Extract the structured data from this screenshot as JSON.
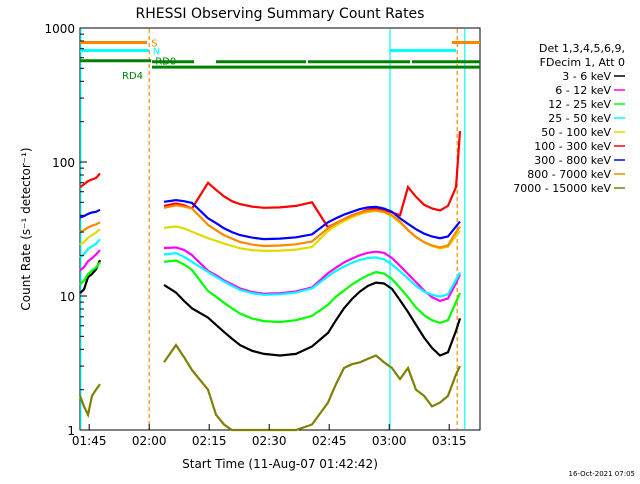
{
  "chart_data": {
    "type": "line",
    "title": "RHESSI Observing Summary Count Rates",
    "xlabel": "Start Time (11-Aug-07 01:42:42)",
    "ylabel": "Count Rate (s⁻¹ detector⁻¹)",
    "yscale": "log",
    "ylim": [
      1,
      1000
    ],
    "xlim_minutes": [
      0,
      100
    ],
    "x_ticks": [
      {
        "label": "01:45",
        "minute": 2.3
      },
      {
        "label": "02:00",
        "minute": 17.3
      },
      {
        "label": "02:15",
        "minute": 32.3
      },
      {
        "label": "02:30",
        "minute": 47.3
      },
      {
        "label": "02:45",
        "minute": 62.3
      },
      {
        "label": "03:00",
        "minute": 77.3
      },
      {
        "label": "03:15",
        "minute": 92.3
      }
    ],
    "y_ticks": [
      {
        "label": "1",
        "value": 1
      },
      {
        "label": "10",
        "value": 10
      },
      {
        "label": "100",
        "value": 100
      },
      {
        "label": "1000",
        "value": 1000
      }
    ],
    "legend": {
      "position": "right",
      "header": [
        "Det 1,3,4,5,6,9,",
        "FDecim 1, Att 0"
      ]
    },
    "series": [
      {
        "name": "3 - 6 keV",
        "color": "#000000",
        "x": [
          0,
          1,
          2,
          3,
          4,
          5,
          19,
          21,
          24,
          26,
          28,
          32,
          34,
          36,
          38,
          40,
          43,
          46,
          50,
          54,
          58,
          62,
          64,
          66,
          68,
          70,
          72,
          74,
          76,
          78,
          80,
          82,
          84,
          86,
          88,
          90,
          92,
          94,
          95
        ],
        "y": [
          10.5,
          11.2,
          13.8,
          14.6,
          15.8,
          18.5,
          null,
          12.1,
          10.6,
          9.2,
          8.1,
          6.9,
          6.1,
          5.4,
          4.8,
          4.3,
          3.9,
          3.7,
          3.6,
          3.7,
          4.2,
          5.3,
          6.6,
          8.1,
          9.5,
          10.8,
          11.9,
          12.6,
          12.4,
          11.3,
          9.3,
          7.6,
          6.1,
          4.9,
          4.1,
          3.6,
          3.8,
          5.5,
          6.8
        ]
      },
      {
        "name": "6 - 12 keV",
        "color": "#ff00ff",
        "x": [
          0,
          1,
          2,
          3,
          4,
          5,
          19,
          21,
          24,
          26,
          28,
          32,
          34,
          36,
          38,
          40,
          43,
          46,
          50,
          54,
          58,
          62,
          64,
          66,
          68,
          70,
          72,
          74,
          76,
          78,
          80,
          82,
          84,
          86,
          88,
          90,
          92,
          94,
          95
        ],
        "y": [
          15.5,
          16.4,
          18.2,
          19.1,
          20.4,
          22.0,
          null,
          22.8,
          23.0,
          22.1,
          20.2,
          15.4,
          14.3,
          13.1,
          12.2,
          11.4,
          10.7,
          10.4,
          10.5,
          10.8,
          11.6,
          14.8,
          16.3,
          17.8,
          19.0,
          20.2,
          21.0,
          21.4,
          21.0,
          19.2,
          16.8,
          14.6,
          12.7,
          11.0,
          9.8,
          9.2,
          9.6,
          12.5,
          14.5
        ]
      },
      {
        "name": "12 - 25 keV",
        "color": "#00ff00",
        "x": [
          0,
          1,
          2,
          3,
          4,
          5,
          19,
          21,
          24,
          26,
          28,
          32,
          34,
          36,
          38,
          40,
          43,
          46,
          50,
          54,
          58,
          62,
          64,
          66,
          68,
          70,
          72,
          74,
          76,
          78,
          80,
          82,
          84,
          86,
          88,
          90,
          92,
          94,
          95
        ],
        "y": [
          12.2,
          13.0,
          14.6,
          15.5,
          16.3,
          17.8,
          null,
          18.0,
          18.4,
          17.2,
          15.6,
          10.9,
          9.9,
          8.9,
          8.1,
          7.4,
          6.8,
          6.5,
          6.4,
          6.6,
          7.1,
          8.6,
          9.9,
          11.0,
          12.2,
          13.3,
          14.3,
          15.1,
          14.7,
          13.4,
          11.5,
          9.8,
          8.2,
          7.2,
          6.6,
          6.3,
          6.6,
          9.0,
          10.5
        ]
      },
      {
        "name": "25 - 50 keV",
        "color": "#00ffff",
        "x": [
          0,
          1,
          2,
          3,
          4,
          5,
          19,
          21,
          24,
          26,
          28,
          32,
          34,
          36,
          38,
          40,
          43,
          46,
          50,
          54,
          58,
          62,
          64,
          66,
          68,
          70,
          72,
          74,
          76,
          78,
          80,
          82,
          84,
          86,
          88,
          90,
          92,
          94,
          95
        ],
        "y": [
          19.5,
          20.5,
          22.5,
          23.5,
          24.5,
          26.5,
          null,
          20.4,
          20.9,
          19.6,
          18.0,
          15.1,
          13.9,
          12.8,
          11.9,
          11.1,
          10.5,
          10.2,
          10.3,
          10.6,
          11.4,
          14.0,
          15.4,
          16.6,
          17.7,
          18.6,
          19.2,
          19.4,
          18.8,
          17.2,
          15.3,
          13.5,
          11.9,
          10.8,
          10.2,
          9.9,
          10.3,
          13.2,
          15.0
        ]
      },
      {
        "name": "50 - 100 keV",
        "color": "#dddd00",
        "x": [
          0,
          1,
          2,
          3,
          4,
          5,
          19,
          21,
          24,
          26,
          28,
          32,
          34,
          36,
          38,
          40,
          43,
          46,
          50,
          54,
          58,
          62,
          64,
          66,
          68,
          70,
          72,
          74,
          76,
          78,
          80,
          82,
          84,
          86,
          88,
          90,
          92,
          94,
          95
        ],
        "y": [
          24.2,
          25.2,
          27.2,
          28.5,
          29.8,
          31.5,
          null,
          32.2,
          33.0,
          32.0,
          30.2,
          27.0,
          25.8,
          24.6,
          23.6,
          22.7,
          22.0,
          21.7,
          21.8,
          22.2,
          23.2,
          30.5,
          33.5,
          36.2,
          38.7,
          40.8,
          42.4,
          43.1,
          42.2,
          39.2,
          35.2,
          31.2,
          27.6,
          25.2,
          23.6,
          22.6,
          23.3,
          28.0,
          30.5
        ]
      },
      {
        "name": "100 - 300 keV",
        "color": "#ff0000",
        "x": [
          0,
          1,
          2,
          3,
          4,
          5,
          19,
          21,
          24,
          26,
          28,
          32,
          34,
          36,
          38,
          40,
          43,
          46,
          50,
          54,
          58,
          62,
          64,
          66,
          68,
          70,
          72,
          74,
          76,
          78,
          80,
          82,
          84,
          86,
          88,
          90,
          92,
          94,
          95
        ],
        "y": [
          65.0,
          68.0,
          72.0,
          74.0,
          76.0,
          82.0,
          null,
          47.0,
          49.0,
          47.5,
          45.0,
          70.0,
          62.0,
          55.5,
          51.0,
          48.5,
          46.5,
          45.5,
          45.8,
          47.0,
          50.0,
          32.5,
          35.0,
          37.5,
          40.0,
          42.0,
          44.0,
          45.0,
          44.0,
          42.0,
          40.0,
          65.0,
          55.0,
          48.0,
          45.0,
          43.5,
          47.0,
          65.0,
          170.0
        ]
      },
      {
        "name": "300 - 800 keV",
        "color": "#0000ff",
        "x": [
          0,
          1,
          2,
          3,
          4,
          5,
          19,
          21,
          24,
          26,
          28,
          32,
          34,
          36,
          38,
          40,
          43,
          46,
          50,
          54,
          58,
          62,
          64,
          66,
          68,
          70,
          72,
          74,
          76,
          78,
          80,
          82,
          84,
          86,
          88,
          90,
          92,
          94,
          95
        ],
        "y": [
          38.5,
          39.5,
          41.0,
          42.0,
          42.5,
          44.0,
          null,
          50.5,
          52.0,
          51.0,
          49.5,
          38.0,
          35.0,
          32.0,
          30.0,
          28.5,
          27.3,
          26.6,
          26.8,
          27.4,
          28.8,
          35.5,
          38.0,
          40.5,
          42.5,
          44.5,
          45.8,
          46.2,
          45.0,
          42.5,
          38.0,
          34.5,
          31.5,
          29.2,
          27.8,
          27.0,
          27.8,
          33.0,
          36.0
        ]
      },
      {
        "name": "800 - 7000 keV",
        "color": "#ff8800",
        "x": [
          0,
          1,
          2,
          3,
          4,
          5,
          19,
          21,
          24,
          26,
          28,
          32,
          34,
          36,
          38,
          40,
          43,
          46,
          50,
          54,
          58,
          62,
          64,
          66,
          68,
          70,
          72,
          74,
          76,
          78,
          80,
          82,
          84,
          86,
          88,
          90,
          92,
          94,
          95
        ],
        "y": [
          30.0,
          31.0,
          32.5,
          33.5,
          34.2,
          35.5,
          null,
          45.5,
          47.5,
          46.5,
          45.0,
          34.0,
          31.0,
          28.5,
          26.8,
          25.3,
          24.2,
          23.6,
          23.8,
          24.3,
          25.5,
          32.0,
          35.0,
          37.5,
          39.8,
          41.8,
          43.2,
          43.6,
          42.5,
          40.0,
          36.0,
          31.0,
          27.5,
          25.2,
          23.8,
          23.0,
          23.8,
          30.0,
          33.0
        ]
      },
      {
        "name": "7000 - 15000 keV",
        "color": "#808000",
        "x": [
          0,
          1,
          2,
          3,
          4,
          5,
          19,
          21,
          24,
          26,
          28,
          32,
          34,
          36,
          38,
          40,
          43,
          46,
          50,
          54,
          58,
          62,
          64,
          66,
          68,
          70,
          72,
          74,
          76,
          78,
          80,
          82,
          84,
          86,
          88,
          90,
          92,
          94,
          95
        ],
        "y": [
          1.8,
          1.5,
          1.3,
          1.8,
          2.0,
          2.2,
          null,
          3.2,
          4.3,
          3.5,
          2.8,
          2.0,
          1.3,
          1.1,
          1.0,
          1.0,
          1.0,
          1.0,
          1.0,
          1.0,
          1.1,
          1.6,
          2.2,
          2.9,
          3.1,
          3.2,
          3.4,
          3.6,
          3.2,
          2.9,
          2.4,
          2.9,
          2.0,
          1.8,
          1.5,
          1.6,
          1.8,
          2.6,
          3.0
        ]
      }
    ],
    "annotations": [
      {
        "label": "S",
        "color": "#ff8800",
        "bar_value": 780,
        "x_start": 0,
        "x_end": 16.8,
        "x_start2": 93,
        "x_end2": 100
      },
      {
        "label": "N",
        "color": "#00ffff",
        "bar_value": 680,
        "x_start": 0,
        "x_end": 17.2,
        "x_start2": 77.4,
        "x_end2": 94
      },
      {
        "label": "RD0",
        "color": "#008000",
        "bar_value": 570,
        "x_start": 0,
        "x_end": 17.8
      },
      {
        "label": "RD4",
        "color": "#008000",
        "bar_value": 510,
        "x_start": 18,
        "x_end": 100
      },
      {
        "green_segments": [
          [
            18,
            28.5
          ],
          [
            34,
            56.5
          ],
          [
            57,
            82.5
          ],
          [
            83,
            100
          ]
        ]
      }
    ],
    "vertical_lines": [
      {
        "color": "#00ffff",
        "minute": 0.2
      },
      {
        "color": "#ff8800",
        "minute": 17.3,
        "style": "dashed"
      },
      {
        "color": "#00ffff",
        "minute": 77.5
      },
      {
        "color": "#ff8800",
        "minute": 94.3,
        "style": "dashed"
      },
      {
        "color": "#00ffff",
        "minute": 96.2
      }
    ],
    "timestamp": "16-Oct-2021 07:05"
  }
}
